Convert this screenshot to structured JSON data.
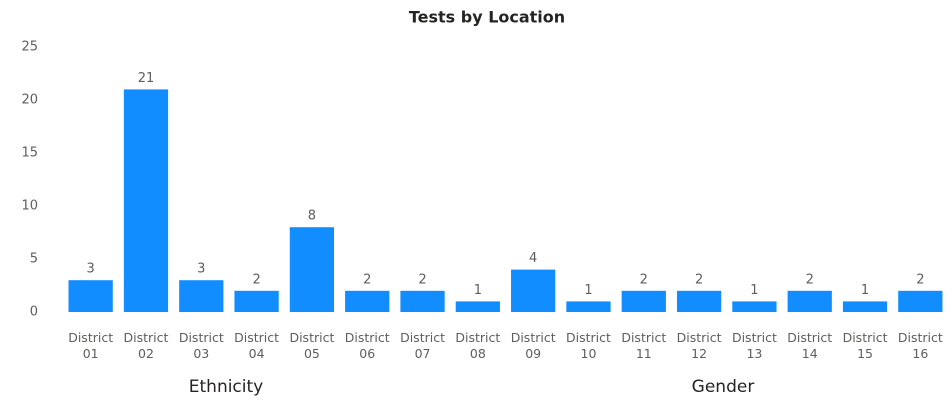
{
  "chart_data": {
    "type": "bar",
    "title": "Tests by Location",
    "categories": [
      "District 01",
      "District 02",
      "District 03",
      "District 04",
      "District 05",
      "District 06",
      "District 07",
      "District 08",
      "District 09",
      "District 10",
      "District 11",
      "District 12",
      "District 13",
      "District 14",
      "District 15",
      "District 16"
    ],
    "values": [
      3,
      21,
      3,
      2,
      8,
      2,
      2,
      1,
      4,
      1,
      2,
      2,
      1,
      2,
      1,
      2
    ],
    "color": "#118dff",
    "ylim": [
      0,
      25
    ],
    "yticks": [
      0,
      5,
      10,
      15,
      20,
      25
    ],
    "grid": false,
    "data_labels": true
  },
  "section_headers": [
    "Ethnicity",
    "Gender"
  ]
}
